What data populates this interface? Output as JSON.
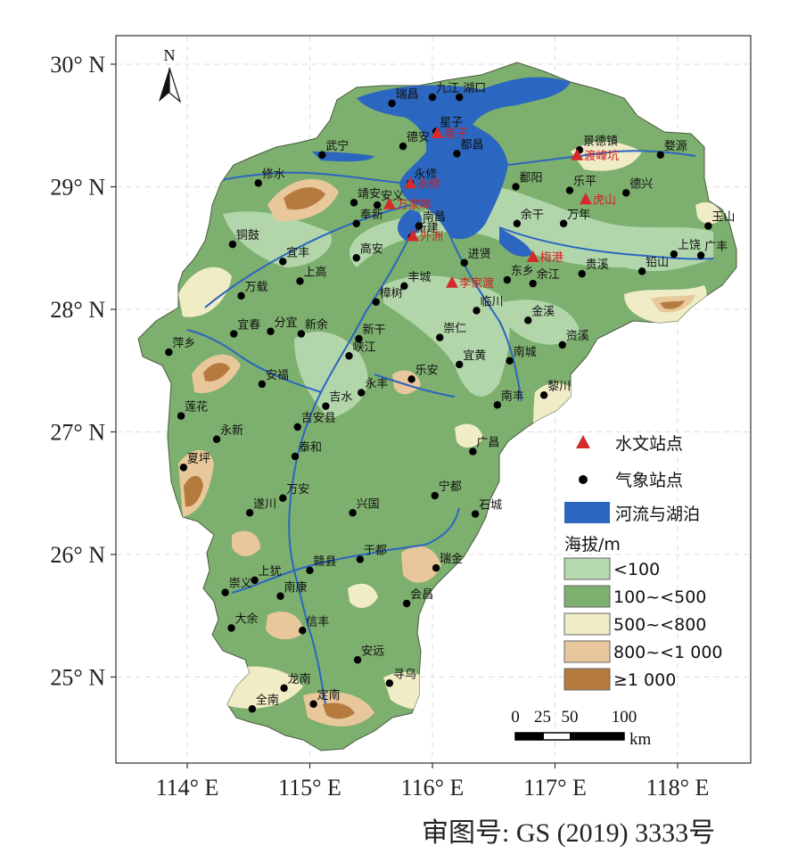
{
  "axes": {
    "lat_ticks": [
      "30° N",
      "29° N",
      "28° N",
      "27° N",
      "26° N",
      "25° N"
    ],
    "lon_ticks": [
      "114° E",
      "115° E",
      "116° E",
      "117° E",
      "118° E"
    ]
  },
  "north_arrow": {
    "label": "N"
  },
  "legend": {
    "hydro_label": "水文站点",
    "weather_label": "气象站点",
    "water_label": "河流与湖泊",
    "elevation_title": "海拔/m",
    "classes": [
      {
        "label": "<100",
        "color": "#b5d8ae"
      },
      {
        "label": "100~<500",
        "color": "#7daf6e"
      },
      {
        "label": "500~<800",
        "color": "#f0ecc6"
      },
      {
        "label": "800~<1 000",
        "color": "#e8c79b"
      },
      {
        "label": "≥1 000",
        "color": "#b57a3d"
      }
    ]
  },
  "scale_bar": {
    "ticks": [
      "0",
      "25",
      "50",
      "100"
    ],
    "unit": "km"
  },
  "approval_number": "审图号: GS (2019) 3333号",
  "colors": {
    "water": "#2b66c0",
    "hydro": "#d42a2a",
    "weather": "#000000"
  },
  "hydro_stations": [
    {
      "name": "星子",
      "lon": 116.04,
      "lat": 29.44
    },
    {
      "name": "渡峰坑",
      "lon": 117.18,
      "lat": 29.26
    },
    {
      "name": "永修",
      "lon": 115.82,
      "lat": 29.03
    },
    {
      "name": "万家埠",
      "lon": 115.65,
      "lat": 28.86
    },
    {
      "name": "虎山",
      "lon": 117.25,
      "lat": 28.9
    },
    {
      "name": "外洲",
      "lon": 115.84,
      "lat": 28.6
    },
    {
      "name": "梅港",
      "lon": 116.82,
      "lat": 28.43
    },
    {
      "name": "李家渡",
      "lon": 116.16,
      "lat": 28.22
    }
  ],
  "weather_stations": [
    {
      "name": "九江",
      "lon": 116.0,
      "lat": 29.73
    },
    {
      "name": "湖口",
      "lon": 116.22,
      "lat": 29.73
    },
    {
      "name": "瑞昌",
      "lon": 115.67,
      "lat": 29.68
    },
    {
      "name": "星子",
      "lon": 116.03,
      "lat": 29.45
    },
    {
      "name": "德安",
      "lon": 115.76,
      "lat": 29.33
    },
    {
      "name": "都昌",
      "lon": 116.2,
      "lat": 29.27
    },
    {
      "name": "景德镇",
      "lon": 117.2,
      "lat": 29.3
    },
    {
      "name": "婺源",
      "lon": 117.86,
      "lat": 29.26
    },
    {
      "name": "武宁",
      "lon": 115.1,
      "lat": 29.26
    },
    {
      "name": "修水",
      "lon": 114.58,
      "lat": 29.03
    },
    {
      "name": "永修",
      "lon": 115.82,
      "lat": 29.03
    },
    {
      "name": "鄱阳",
      "lon": 116.68,
      "lat": 29.0
    },
    {
      "name": "乐平",
      "lon": 117.12,
      "lat": 28.97
    },
    {
      "name": "德兴",
      "lon": 117.58,
      "lat": 28.95
    },
    {
      "name": "靖安",
      "lon": 115.36,
      "lat": 28.87
    },
    {
      "name": "安义",
      "lon": 115.55,
      "lat": 28.85
    },
    {
      "name": "奉新",
      "lon": 115.38,
      "lat": 28.7
    },
    {
      "name": "南昌",
      "lon": 115.89,
      "lat": 28.68
    },
    {
      "name": "余干",
      "lon": 116.69,
      "lat": 28.7
    },
    {
      "name": "万年",
      "lon": 117.07,
      "lat": 28.7
    },
    {
      "name": "玉山",
      "lon": 118.25,
      "lat": 28.68
    },
    {
      "name": "新建",
      "lon": 115.83,
      "lat": 28.59
    },
    {
      "name": "铜鼓",
      "lon": 114.37,
      "lat": 28.53
    },
    {
      "name": "宜丰",
      "lon": 114.78,
      "lat": 28.39
    },
    {
      "name": "高安",
      "lon": 115.38,
      "lat": 28.42
    },
    {
      "name": "进贤",
      "lon": 116.26,
      "lat": 28.38
    },
    {
      "name": "上饶",
      "lon": 117.97,
      "lat": 28.45
    },
    {
      "name": "贵溪",
      "lon": 117.22,
      "lat": 28.29
    },
    {
      "name": "铅山",
      "lon": 117.71,
      "lat": 28.31
    },
    {
      "name": "广丰",
      "lon": 118.19,
      "lat": 28.44
    },
    {
      "name": "上高",
      "lon": 114.92,
      "lat": 28.23
    },
    {
      "name": "万载",
      "lon": 114.44,
      "lat": 28.11
    },
    {
      "name": "丰城",
      "lon": 115.77,
      "lat": 28.19
    },
    {
      "name": "樟树",
      "lon": 115.54,
      "lat": 28.06
    },
    {
      "name": "余江",
      "lon": 116.82,
      "lat": 28.21
    },
    {
      "name": "东乡",
      "lon": 116.61,
      "lat": 28.24
    },
    {
      "name": "临川",
      "lon": 116.36,
      "lat": 27.99
    },
    {
      "name": "宜春",
      "lon": 114.38,
      "lat": 27.8
    },
    {
      "name": "分宜",
      "lon": 114.68,
      "lat": 27.82
    },
    {
      "name": "新余",
      "lon": 114.93,
      "lat": 27.8
    },
    {
      "name": "新干",
      "lon": 115.4,
      "lat": 27.76
    },
    {
      "name": "崇仁",
      "lon": 116.06,
      "lat": 27.77
    },
    {
      "name": "金溪",
      "lon": 116.78,
      "lat": 27.91
    },
    {
      "name": "资溪",
      "lon": 117.06,
      "lat": 27.71
    },
    {
      "name": "萍乡",
      "lon": 113.85,
      "lat": 27.65
    },
    {
      "name": "峡江",
      "lon": 115.32,
      "lat": 27.62
    },
    {
      "name": "宜黄",
      "lon": 116.22,
      "lat": 27.55
    },
    {
      "name": "南城",
      "lon": 116.63,
      "lat": 27.58
    },
    {
      "name": "安福",
      "lon": 114.61,
      "lat": 27.39
    },
    {
      "name": "永丰",
      "lon": 115.42,
      "lat": 27.32
    },
    {
      "name": "乐安",
      "lon": 115.83,
      "lat": 27.43
    },
    {
      "name": "黎川",
      "lon": 116.91,
      "lat": 27.3
    },
    {
      "name": "吉水",
      "lon": 115.13,
      "lat": 27.21
    },
    {
      "name": "南丰",
      "lon": 116.53,
      "lat": 27.22
    },
    {
      "name": "莲花",
      "lon": 113.95,
      "lat": 27.13
    },
    {
      "name": "吉安县",
      "lon": 114.9,
      "lat": 27.04
    },
    {
      "name": "永新",
      "lon": 114.24,
      "lat": 26.94
    },
    {
      "name": "泰和",
      "lon": 114.88,
      "lat": 26.8
    },
    {
      "name": "广昌",
      "lon": 116.33,
      "lat": 26.84
    },
    {
      "name": "夏坪",
      "lon": 113.97,
      "lat": 26.71
    },
    {
      "name": "遂川",
      "lon": 114.51,
      "lat": 26.34
    },
    {
      "name": "万安",
      "lon": 114.78,
      "lat": 26.46
    },
    {
      "name": "兴国",
      "lon": 115.35,
      "lat": 26.34
    },
    {
      "name": "宁都",
      "lon": 116.02,
      "lat": 26.48
    },
    {
      "name": "石城",
      "lon": 116.35,
      "lat": 26.33
    },
    {
      "name": "于都",
      "lon": 115.41,
      "lat": 25.96
    },
    {
      "name": "瑞金",
      "lon": 116.03,
      "lat": 25.89
    },
    {
      "name": "赣县",
      "lon": 115.0,
      "lat": 25.87
    },
    {
      "name": "上犹",
      "lon": 114.55,
      "lat": 25.79
    },
    {
      "name": "崇义",
      "lon": 114.31,
      "lat": 25.69
    },
    {
      "name": "南康",
      "lon": 114.76,
      "lat": 25.66
    },
    {
      "name": "会昌",
      "lon": 115.79,
      "lat": 25.6
    },
    {
      "name": "大余",
      "lon": 114.36,
      "lat": 25.4
    },
    {
      "name": "信丰",
      "lon": 114.94,
      "lat": 25.38
    },
    {
      "name": "安远",
      "lon": 115.39,
      "lat": 25.14
    },
    {
      "name": "龙南",
      "lon": 114.79,
      "lat": 24.91
    },
    {
      "name": "寻乌",
      "lon": 115.65,
      "lat": 24.95
    },
    {
      "name": "全南",
      "lon": 114.53,
      "lat": 24.74
    },
    {
      "name": "定南",
      "lon": 115.03,
      "lat": 24.78
    }
  ]
}
